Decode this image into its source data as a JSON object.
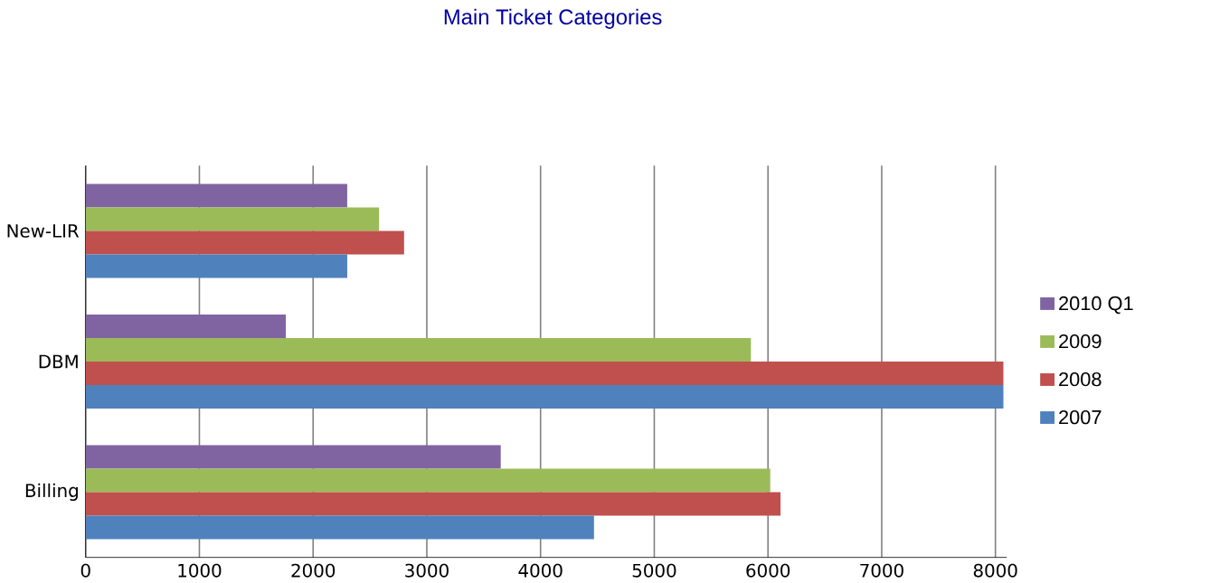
{
  "chart_data": {
    "type": "bar",
    "orientation": "horizontal",
    "title": "Main Ticket Categories",
    "categories": [
      "New-LIR",
      "DBM",
      "Billing"
    ],
    "series": [
      {
        "name": "2010 Q1",
        "color": "#8064a2",
        "values": [
          2300,
          1760,
          3650
        ]
      },
      {
        "name": "2009",
        "color": "#9bbb59",
        "values": [
          2580,
          5850,
          6020
        ]
      },
      {
        "name": "2008",
        "color": "#c0504d",
        "values": [
          2800,
          8070,
          6110
        ]
      },
      {
        "name": "2007",
        "color": "#4f81bd",
        "values": [
          2300,
          8070,
          4470
        ]
      }
    ],
    "xlim": [
      0,
      8100
    ],
    "xticks": [
      0,
      1000,
      2000,
      3000,
      4000,
      5000,
      6000,
      7000,
      8000
    ],
    "grid": "x",
    "legend": "right"
  }
}
